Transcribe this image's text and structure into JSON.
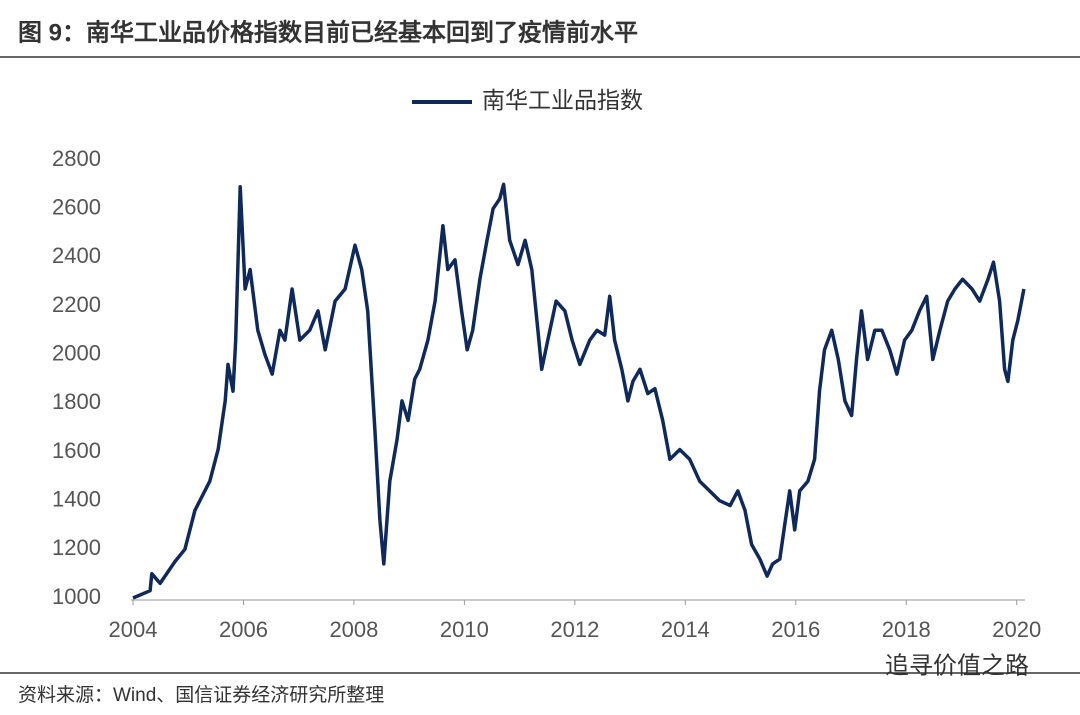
{
  "chart_data": {
    "type": "line",
    "title": "图 9：南华工业品价格指数目前已经基本回到了疫情前水平",
    "source": "资料来源：Wind、国信证券经济研究所整理",
    "watermark": "追寻价值之路",
    "legend": "top",
    "xlim": [
      2004,
      2020.15
    ],
    "xticks": [
      2004,
      2006,
      2008,
      2010,
      2012,
      2014,
      2016,
      2018,
      2020
    ],
    "ylim": [
      1000,
      2800
    ],
    "yticks": [
      1000,
      1200,
      1400,
      1600,
      1800,
      2000,
      2200,
      2400,
      2600,
      2800
    ],
    "x": [
      2004.0,
      2004.31,
      2004.34,
      2004.49,
      2004.76,
      2004.94,
      2005.12,
      2005.39,
      2005.54,
      2005.67,
      2005.72,
      2005.81,
      2005.86,
      2005.94,
      2006.03,
      2006.12,
      2006.26,
      2006.39,
      2006.52,
      2006.66,
      2006.75,
      2006.88,
      2007.02,
      2007.2,
      2007.35,
      2007.48,
      2007.66,
      2007.84,
      2008.02,
      2008.14,
      2008.25,
      2008.38,
      2008.47,
      2008.54,
      2008.65,
      2008.78,
      2008.87,
      2008.98,
      2009.1,
      2009.19,
      2009.34,
      2009.47,
      2009.61,
      2009.7,
      2009.83,
      2009.95,
      2010.05,
      2010.15,
      2010.28,
      2010.41,
      2010.52,
      2010.64,
      2010.71,
      2010.82,
      2010.97,
      2011.1,
      2011.22,
      2011.33,
      2011.4,
      2011.51,
      2011.66,
      2011.82,
      2011.95,
      2012.09,
      2012.27,
      2012.4,
      2012.54,
      2012.63,
      2012.72,
      2012.85,
      2012.96,
      2013.05,
      2013.18,
      2013.32,
      2013.45,
      2013.59,
      2013.72,
      2013.9,
      2014.08,
      2014.26,
      2014.44,
      2014.62,
      2014.81,
      2014.95,
      2015.08,
      2015.2,
      2015.35,
      2015.48,
      2015.58,
      2015.71,
      2015.8,
      2015.89,
      2015.98,
      2016.07,
      2016.22,
      2016.34,
      2016.43,
      2016.52,
      2016.65,
      2016.77,
      2016.89,
      2017.01,
      2017.1,
      2017.19,
      2017.3,
      2017.43,
      2017.56,
      2017.7,
      2017.83,
      2017.97,
      2018.1,
      2018.24,
      2018.37,
      2018.48,
      2018.61,
      2018.75,
      2018.88,
      2019.02,
      2019.19,
      2019.33,
      2019.48,
      2019.58,
      2019.69,
      2019.78,
      2019.84,
      2019.93,
      2020.02,
      2020.13
    ],
    "series": [
      {
        "name": "南华工业品指数",
        "color": "#0f2a5a",
        "values": [
          1000,
          1030,
          1100,
          1060,
          1150,
          1200,
          1360,
          1480,
          1610,
          1810,
          1960,
          1850,
          2060,
          2690,
          2270,
          2350,
          2100,
          2000,
          1920,
          2100,
          2060,
          2270,
          2060,
          2100,
          2180,
          2020,
          2220,
          2270,
          2450,
          2350,
          2180,
          1690,
          1320,
          1140,
          1480,
          1650,
          1810,
          1730,
          1900,
          1940,
          2060,
          2220,
          2530,
          2350,
          2390,
          2180,
          2020,
          2100,
          2310,
          2470,
          2600,
          2640,
          2700,
          2470,
          2370,
          2470,
          2350,
          2100,
          1940,
          2060,
          2220,
          2180,
          2060,
          1960,
          2060,
          2100,
          2080,
          2240,
          2060,
          1940,
          1810,
          1890,
          1940,
          1840,
          1860,
          1730,
          1570,
          1610,
          1570,
          1480,
          1440,
          1400,
          1380,
          1440,
          1360,
          1220,
          1160,
          1090,
          1140,
          1160,
          1300,
          1440,
          1280,
          1440,
          1480,
          1570,
          1850,
          2020,
          2100,
          1980,
          1810,
          1750,
          1980,
          2180,
          1980,
          2100,
          2100,
          2020,
          1920,
          2060,
          2100,
          2180,
          2240,
          1980,
          2100,
          2220,
          2270,
          2310,
          2270,
          2220,
          2310,
          2380,
          2220,
          1940,
          1890,
          2060,
          2140,
          2270
        ]
      }
    ]
  }
}
